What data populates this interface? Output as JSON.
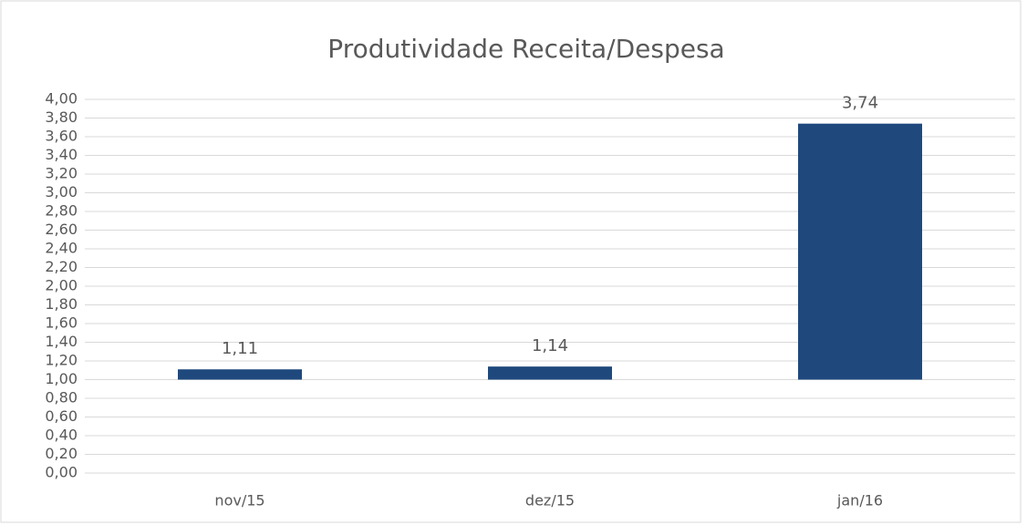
{
  "chart_data": {
    "type": "bar",
    "title": "Produtividade Receita/Despesa",
    "categories": [
      "nov/15",
      "dez/15",
      "jan/16"
    ],
    "values": [
      1.11,
      1.14,
      3.74
    ],
    "value_labels": [
      "1,11",
      "1,14",
      "3,74"
    ],
    "color": "#1f497d",
    "axis_crosses_at": 1,
    "ylim": [
      0,
      4
    ],
    "yticks": [
      {
        "value": 0,
        "label": "0,00"
      },
      {
        "value": 0.2,
        "label": "0,20"
      },
      {
        "value": 0.4,
        "label": "0,40"
      },
      {
        "value": 0.6,
        "label": "0,60"
      },
      {
        "value": 0.8,
        "label": "0,80"
      },
      {
        "value": 1,
        "label": "1,00"
      },
      {
        "value": 1.2,
        "label": "1,20"
      },
      {
        "value": 1.4,
        "label": "1,40"
      },
      {
        "value": 1.6,
        "label": "1,60"
      },
      {
        "value": 1.8,
        "label": "1,80"
      },
      {
        "value": 2,
        "label": "2,00"
      },
      {
        "value": 2.2,
        "label": "2,20"
      },
      {
        "value": 2.4,
        "label": "2,40"
      },
      {
        "value": 2.6,
        "label": "2,60"
      },
      {
        "value": 2.8,
        "label": "2,80"
      },
      {
        "value": 3,
        "label": "3,00"
      },
      {
        "value": 3.2,
        "label": "3,20"
      },
      {
        "value": 3.4,
        "label": "3,40"
      },
      {
        "value": 3.6,
        "label": "3,60"
      },
      {
        "value": 3.8,
        "label": "3,80"
      },
      {
        "value": 4,
        "label": "4,00"
      }
    ],
    "grid": true
  }
}
